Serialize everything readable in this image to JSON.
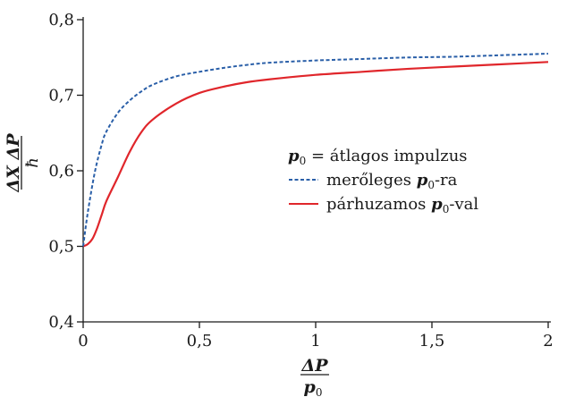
{
  "chart_data": {
    "type": "line",
    "xlim": [
      0,
      2
    ],
    "ylim": [
      0.4,
      0.8
    ],
    "x_ticks": [
      0,
      0.5,
      1,
      1.5,
      2
    ],
    "x_tick_labels": [
      "0",
      "0,5",
      "1",
      "1,5",
      "2"
    ],
    "y_ticks": [
      0.4,
      0.5,
      0.6,
      0.7,
      0.8
    ],
    "y_tick_labels": [
      "0,4",
      "0,5",
      "0,6",
      "0,7",
      "0,8"
    ],
    "xlabel": {
      "numerator": "ΔP",
      "denominator": "p",
      "denominator_sub": "0"
    },
    "ylabel": {
      "numerator": "ΔX ΔP",
      "denominator": "ħ"
    },
    "grid": false,
    "legend_placement": "right-center",
    "legend_title": {
      "prefix": "p",
      "sub": "0",
      "suffix": " = átlagos impulzus"
    },
    "series": [
      {
        "name": "merőleges p0-ra",
        "label": {
          "prefix": "merőleges ",
          "var": "p",
          "sub": "0",
          "suffix": "-ra"
        },
        "color": "#2a5fa8",
        "dash": "dashed",
        "x": [
          0,
          0.02,
          0.05,
          0.08,
          0.1,
          0.15,
          0.2,
          0.25,
          0.3,
          0.4,
          0.5,
          0.6,
          0.7,
          0.8,
          1.0,
          1.2,
          1.4,
          1.6,
          1.8,
          2.0
        ],
        "y": [
          0.5,
          0.545,
          0.598,
          0.635,
          0.652,
          0.677,
          0.693,
          0.705,
          0.714,
          0.725,
          0.731,
          0.736,
          0.74,
          0.743,
          0.746,
          0.748,
          0.75,
          0.751,
          0.753,
          0.755
        ]
      },
      {
        "name": "párhuzamos p0-val",
        "label": {
          "prefix": "párhuzamos ",
          "var": "p",
          "sub": "0",
          "suffix": "-val"
        },
        "color": "#e0262b",
        "dash": "solid",
        "x": [
          0,
          0.02,
          0.04,
          0.06,
          0.08,
          0.1,
          0.15,
          0.2,
          0.25,
          0.3,
          0.4,
          0.5,
          0.6,
          0.7,
          0.8,
          1.0,
          1.2,
          1.4,
          1.6,
          1.8,
          2.0
        ],
        "y": [
          0.5,
          0.503,
          0.51,
          0.524,
          0.542,
          0.56,
          0.592,
          0.625,
          0.651,
          0.668,
          0.689,
          0.703,
          0.711,
          0.717,
          0.721,
          0.727,
          0.731,
          0.735,
          0.738,
          0.741,
          0.744
        ]
      }
    ]
  }
}
